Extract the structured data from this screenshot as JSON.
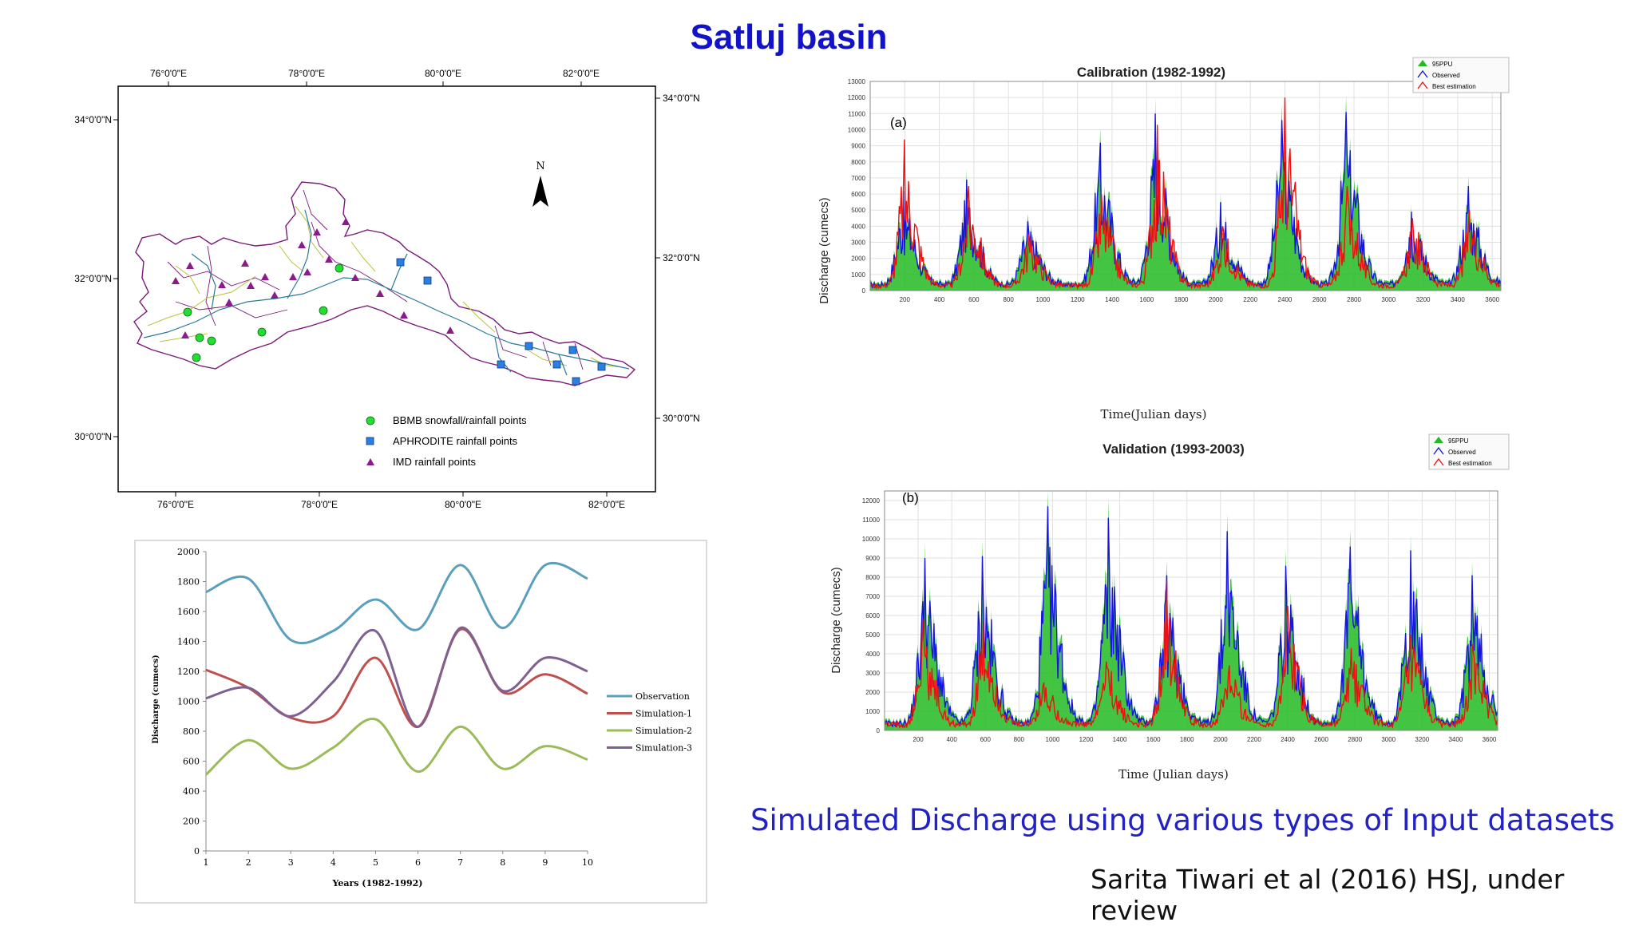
{
  "slide": {
    "title": "Satluj basin",
    "caption": "Simulated Discharge using various types of Input datasets",
    "citation": "Sarita Tiwari et al (2016) HSJ, under review"
  },
  "map": {
    "top_lon_labels": [
      "76°0'0\"E",
      "78°0'0\"E",
      "80°0'0\"E",
      "82°0'0\"E"
    ],
    "bottom_lon_labels": [
      "76°0'0\"E",
      "78°0'0\"E",
      "80°0'0\"E",
      "82°0'0\"E"
    ],
    "left_lat_labels": [
      "34°0'0\"N",
      "32°0'0\"N",
      "30°0'0\"N"
    ],
    "right_lat_labels": [
      "34°0'0\"N",
      "32°0'0\"N",
      "30°0'0\"N"
    ],
    "north_label": "N",
    "legend": [
      {
        "label": "BBMB snowfall/rainfall points",
        "symbol": "circle",
        "color": "#22dd33"
      },
      {
        "label": "APHRODITE rainfall points",
        "symbol": "square",
        "color": "#2a7fe0"
      },
      {
        "label": "IMD rainfall points",
        "symbol": "triangle",
        "color": "#8c1a8c"
      }
    ],
    "colors": {
      "boundary": "#7a1a7a",
      "rivers": "#2a7a9a",
      "streams": "#b9c43a"
    }
  },
  "chart_data": [
    {
      "type": "line",
      "title": "Calibration (1982-1992)",
      "panel_label": "(a)",
      "xlabel": "Time(Julian days)",
      "ylabel": "Discharge (cumecs)",
      "xlim": [
        0,
        3650
      ],
      "ylim": [
        0,
        13000
      ],
      "xticks": [
        200,
        400,
        600,
        800,
        1000,
        1200,
        1400,
        1600,
        1800,
        2000,
        2200,
        2400,
        2600,
        2800,
        3000,
        3200,
        3400,
        3600
      ],
      "yticks": [
        0,
        1000,
        2000,
        3000,
        4000,
        5000,
        6000,
        7000,
        8000,
        9000,
        10000,
        11000,
        12000,
        13000
      ],
      "legend": [
        "95PPU",
        "Observed",
        "Best estimation"
      ],
      "legend_position": "top-right",
      "grid": true,
      "series_colors": {
        "95PPU": "#22bb22",
        "Observed": "#1515dd",
        "Best estimation": "#ee1111"
      },
      "peaks": {
        "observed": [
          [
            190,
            6200
          ],
          [
            560,
            6900
          ],
          [
            910,
            4300
          ],
          [
            1330,
            9200
          ],
          [
            1650,
            11000
          ],
          [
            2030,
            5500
          ],
          [
            2380,
            10600
          ],
          [
            2755,
            11100
          ],
          [
            3130,
            4900
          ],
          [
            3460,
            6500
          ]
        ],
        "best_estimation": [
          [
            200,
            9400
          ],
          [
            570,
            6500
          ],
          [
            920,
            3500
          ],
          [
            1340,
            6000
          ],
          [
            1660,
            10300
          ],
          [
            2040,
            4000
          ],
          [
            2400,
            12000
          ],
          [
            2760,
            6500
          ],
          [
            3140,
            4500
          ],
          [
            3470,
            5000
          ]
        ]
      }
    },
    {
      "type": "line",
      "title": "Validation (1993-2003)",
      "panel_label": "(b)",
      "xlabel": "Time (Julian days)",
      "ylabel": "Discharge (cumecs)",
      "xlim": [
        0,
        3650
      ],
      "ylim": [
        0,
        12500
      ],
      "xticks": [
        200,
        400,
        600,
        800,
        1000,
        1200,
        1400,
        1600,
        1800,
        2000,
        2200,
        2400,
        2600,
        2800,
        3000,
        3200,
        3400,
        3600
      ],
      "yticks": [
        0,
        1000,
        2000,
        3000,
        4000,
        5000,
        6000,
        7000,
        8000,
        9000,
        10000,
        11000,
        12000
      ],
      "legend": [
        "95PPU",
        "Observed",
        "Best estimation"
      ],
      "legend_position": "top-right",
      "grid": true,
      "series_colors": {
        "95PPU": "#22bb22",
        "Observed": "#1515dd",
        "Best estimation": "#ee1111"
      },
      "peaks": {
        "observed": [
          [
            240,
            9000
          ],
          [
            580,
            9100
          ],
          [
            970,
            11700
          ],
          [
            1330,
            11100
          ],
          [
            1680,
            8100
          ],
          [
            2040,
            10400
          ],
          [
            2390,
            8600
          ],
          [
            2770,
            9600
          ],
          [
            3130,
            9400
          ],
          [
            3500,
            8100
          ]
        ],
        "best_estimation": [
          [
            230,
            5800
          ],
          [
            590,
            5700
          ],
          [
            950,
            2500
          ],
          [
            1320,
            3600
          ],
          [
            1680,
            7800
          ],
          [
            2050,
            3400
          ],
          [
            2400,
            6500
          ],
          [
            2780,
            4300
          ],
          [
            3130,
            5000
          ],
          [
            3500,
            4500
          ]
        ]
      }
    },
    {
      "type": "line",
      "title": "",
      "xlabel": "Years (1982-1992)",
      "ylabel": "Discharge (cumecs)",
      "x": [
        1,
        2,
        3,
        4,
        5,
        6,
        7,
        8,
        9,
        10
      ],
      "ylim": [
        0,
        2000
      ],
      "yticks": [
        0,
        200,
        400,
        600,
        800,
        1000,
        1200,
        1400,
        1600,
        1800,
        2000
      ],
      "legend_position": "right",
      "grid": false,
      "series": [
        {
          "name": "Observation",
          "color": "#5b9fbe",
          "values": [
            1730,
            1820,
            1410,
            1470,
            1680,
            1480,
            1910,
            1490,
            1910,
            1820
          ]
        },
        {
          "name": "Simulation-1",
          "color": "#c0504d",
          "values": [
            1210,
            1090,
            890,
            900,
            1290,
            830,
            1480,
            1060,
            1180,
            1050
          ]
        },
        {
          "name": "Simulation-2",
          "color": "#9bbb59",
          "values": [
            510,
            740,
            550,
            690,
            880,
            530,
            830,
            550,
            700,
            610
          ]
        },
        {
          "name": "Simulation-3",
          "color": "#7f6191",
          "values": [
            1020,
            1090,
            900,
            1130,
            1470,
            830,
            1490,
            1070,
            1290,
            1200
          ]
        }
      ]
    }
  ]
}
